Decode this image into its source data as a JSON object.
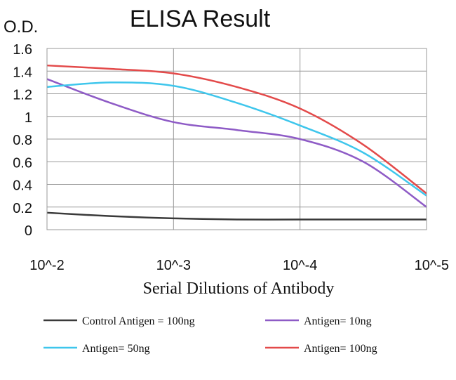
{
  "chart_data": {
    "type": "line",
    "title": "ELISA Result",
    "ylabel": "O.D.",
    "xlabel": "Serial Dilutions of Antibody",
    "x_ticks": [
      "10^-2",
      "10^-3",
      "10^-4",
      "10^-5"
    ],
    "y_ticks": [
      "0",
      "0.2",
      "0.4",
      "0.6",
      "0.8",
      "1",
      "1.2",
      "1.4",
      "1.6"
    ],
    "ylim": [
      0,
      1.6
    ],
    "x_scale": "log",
    "grid": true,
    "legend_position": "bottom",
    "series": [
      {
        "name": "Control Antigen = 100ng",
        "color": "#3a3a3a",
        "values": [
          [
            0.01,
            0.15
          ],
          [
            0.00316,
            0.12
          ],
          [
            0.001,
            0.1
          ],
          [
            0.000316,
            0.09
          ],
          [
            0.0001,
            0.09
          ],
          [
            3.16e-05,
            0.09
          ],
          [
            1e-05,
            0.09
          ]
        ]
      },
      {
        "name": "Antigen= 10ng",
        "color": "#8e5bc6",
        "values": [
          [
            0.01,
            1.33
          ],
          [
            0.00316,
            1.12
          ],
          [
            0.001,
            0.95
          ],
          [
            0.000316,
            0.88
          ],
          [
            0.0001,
            0.8
          ],
          [
            3.16e-05,
            0.6
          ],
          [
            1e-05,
            0.2
          ]
        ]
      },
      {
        "name": "Antigen= 50ng",
        "color": "#3ec6ec",
        "values": [
          [
            0.01,
            1.26
          ],
          [
            0.00316,
            1.3
          ],
          [
            0.001,
            1.27
          ],
          [
            0.000316,
            1.12
          ],
          [
            0.0001,
            0.92
          ],
          [
            3.16e-05,
            0.68
          ],
          [
            1e-05,
            0.3
          ]
        ]
      },
      {
        "name": "Antigen= 100ng",
        "color": "#e34a4a",
        "values": [
          [
            0.01,
            1.45
          ],
          [
            0.00316,
            1.42
          ],
          [
            0.001,
            1.38
          ],
          [
            0.000316,
            1.26
          ],
          [
            0.0001,
            1.07
          ],
          [
            3.16e-05,
            0.75
          ],
          [
            1e-05,
            0.32
          ]
        ]
      }
    ]
  }
}
